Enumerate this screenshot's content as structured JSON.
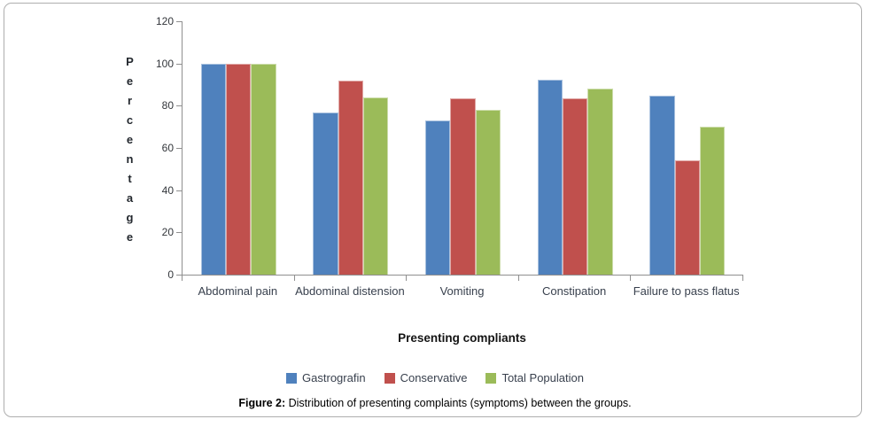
{
  "figure": {
    "caption_bold": "Figure 2:",
    "caption_rest": " Distribution of presenting complaints (symptoms) between the groups."
  },
  "chart_data": {
    "type": "bar",
    "title": "",
    "xlabel": "Presenting compliants",
    "ylabel": "Percentage",
    "categories": [
      "Abdominal pain",
      "Abdominal distension",
      "Vomiting",
      "Constipation",
      "Failure to pass flatus"
    ],
    "series": [
      {
        "name": "Gastrografin",
        "color": "#4F81BD",
        "values": [
          100,
          76.9,
          73.1,
          92.3,
          84.6
        ]
      },
      {
        "name": "Conservative",
        "color": "#C0504D",
        "values": [
          100,
          91.7,
          83.3,
          83.3,
          54.2
        ]
      },
      {
        "name": "Total Population",
        "color": "#9BBB59",
        "values": [
          100,
          84,
          78,
          88,
          70
        ]
      }
    ],
    "ylim": [
      0,
      120
    ],
    "yticks": [
      0,
      20,
      40,
      60,
      80,
      100,
      120
    ],
    "grid": false,
    "legend_position": "bottom",
    "axis_color": "#8f8f8f"
  }
}
